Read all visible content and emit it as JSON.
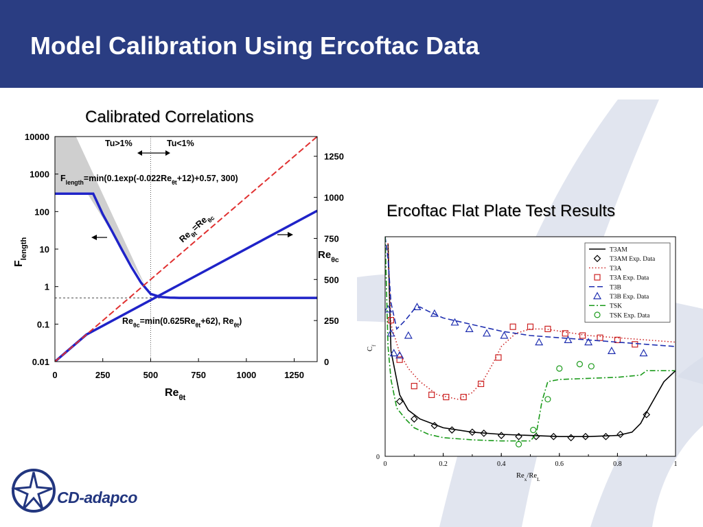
{
  "header": {
    "title": "Model Calibration Using Ercoftac Data"
  },
  "colors": {
    "header_bg": "#2a3d82",
    "brand": "#22367f",
    "swoosh": "#d7dcea"
  },
  "brand": {
    "logo_text": "CD-adapco",
    "logo_icon": "cd-adapco-star-logo"
  },
  "left_section": {
    "title": "Calibrated Correlations"
  },
  "right_section": {
    "title": "Ercoftac Flat Plate Test Results"
  },
  "chart_data": [
    {
      "type": "line",
      "xlabel": "Reθt",
      "ylabel_left": "Flength",
      "ylabel_right": "Reθc",
      "x_ticks": [
        "0",
        "250",
        "500",
        "750",
        "1000",
        "1250"
      ],
      "y_left_ticks": [
        "10000",
        "1000",
        "100",
        "10",
        "1",
        "0.1",
        "0.01"
      ],
      "y_right_ticks": [
        "1250",
        "1000",
        "750",
        "500",
        "250",
        "0"
      ],
      "xlim": [
        0,
        1370
      ],
      "ylim_left": [
        0.01,
        10000
      ],
      "y_left_scale": "log",
      "ylim_right": [
        0,
        1370
      ],
      "annotations": {
        "tu_high": "Tu>1%",
        "tu_low": "Tu<1%",
        "flength_eq": "Flength=min(0.1exp(-0.022Reθt+12)+0.57, 300)",
        "flength_main": "F",
        "flength_sub": "length",
        "flength_rest": "=min(0.1exp(-0.022Re",
        "flength_sub2": "θt",
        "flength_end": "+12)+0.57, 300)",
        "rec_main": "Re",
        "rec_sub": "θc",
        "rec_rest": "=min(0.625Re",
        "rec_sub2": "θt",
        "rec_mid": "+62), Re",
        "rec_sub3": "θt",
        "rec_end": ")",
        "diag_label_main": "Re",
        "diag_label_sub": "θt",
        "diag_label_eq": "=Re",
        "diag_label_sub2": "θc"
      },
      "vertical_marker_x": 500,
      "horizontal_marker_y": 0.5,
      "series": [
        {
          "name": "Flength",
          "axis": "left",
          "color": "#1f23c8",
          "x": [
            0,
            200,
            250,
            300,
            350,
            400,
            450,
            500,
            550,
            600,
            650,
            700,
            1370
          ],
          "y": [
            300,
            300,
            85,
            29,
            9.6,
            3.3,
            1.27,
            0.64,
            0.53,
            0.51,
            0.5,
            0.5,
            0.5
          ]
        },
        {
          "name": "Reθc",
          "axis": "right",
          "color": "#1f23c8",
          "x": [
            0,
            165,
            1370
          ],
          "y": [
            0,
            165,
            918
          ]
        },
        {
          "name": "Reθt=Reθc",
          "axis": "right",
          "color": "#e03030",
          "dashed": true,
          "x": [
            0,
            1370
          ],
          "y": [
            0,
            1370
          ]
        }
      ]
    },
    {
      "type": "line",
      "xlabel": "Rex/ReL",
      "ylabel": "Cf",
      "x_ticks": [
        "0",
        "0.2",
        "0.4",
        "0.6",
        "0.8",
        "1"
      ],
      "y_ticks": [
        "0"
      ],
      "xlim": [
        0,
        1
      ],
      "ylim": [
        0,
        1
      ],
      "legend": [
        "T3AM",
        "T3AM Exp. Data",
        "T3A",
        "T3A Exp. Data",
        "T3B",
        "T3B Exp. Data",
        "TSK",
        "TSK Exp. Data"
      ],
      "legend_position": "top-right",
      "series": [
        {
          "name": "T3AM",
          "kind": "line",
          "color": "#000000",
          "style": "solid",
          "x": [
            0.01,
            0.02,
            0.05,
            0.08,
            0.12,
            0.2,
            0.3,
            0.4,
            0.5,
            0.6,
            0.7,
            0.8,
            0.85,
            0.88,
            0.9,
            0.93,
            0.96,
            1.0
          ],
          "y": [
            0.97,
            0.48,
            0.28,
            0.21,
            0.17,
            0.13,
            0.11,
            0.1,
            0.095,
            0.09,
            0.09,
            0.095,
            0.11,
            0.15,
            0.2,
            0.27,
            0.34,
            0.39
          ]
        },
        {
          "name": "T3AM Exp. Data",
          "kind": "marker",
          "marker": "diamond",
          "color": "#000000",
          "x": [
            0.05,
            0.1,
            0.17,
            0.23,
            0.3,
            0.34,
            0.4,
            0.46,
            0.52,
            0.58,
            0.64,
            0.69,
            0.76,
            0.81,
            0.9
          ],
          "y": [
            0.25,
            0.17,
            0.14,
            0.12,
            0.11,
            0.105,
            0.095,
            0.09,
            0.09,
            0.09,
            0.085,
            0.09,
            0.09,
            0.1,
            0.19
          ]
        },
        {
          "name": "T3A",
          "kind": "line",
          "color": "#cc2222",
          "style": "dotted",
          "x": [
            0.01,
            0.02,
            0.05,
            0.08,
            0.12,
            0.18,
            0.25,
            0.3,
            0.34,
            0.37,
            0.4,
            0.45,
            0.5,
            0.55,
            0.6,
            0.7,
            0.8,
            0.9,
            1.0
          ],
          "y": [
            0.97,
            0.6,
            0.47,
            0.4,
            0.34,
            0.28,
            0.26,
            0.29,
            0.35,
            0.42,
            0.5,
            0.56,
            0.58,
            0.58,
            0.57,
            0.55,
            0.54,
            0.53,
            0.52
          ]
        },
        {
          "name": "T3A Exp. Data",
          "kind": "marker",
          "marker": "square",
          "color": "#cc2222",
          "x": [
            0.02,
            0.05,
            0.1,
            0.16,
            0.21,
            0.27,
            0.33,
            0.39,
            0.44,
            0.5,
            0.56,
            0.62,
            0.68,
            0.74,
            0.8,
            0.86
          ],
          "y": [
            0.62,
            0.44,
            0.32,
            0.28,
            0.27,
            0.27,
            0.33,
            0.45,
            0.59,
            0.59,
            0.58,
            0.56,
            0.55,
            0.54,
            0.53,
            0.51
          ]
        },
        {
          "name": "T3B",
          "kind": "line",
          "color": "#1f2fb0",
          "style": "dashed",
          "x": [
            0.0,
            0.01,
            0.02,
            0.04,
            0.07,
            0.1,
            0.12,
            0.15,
            0.2,
            0.3,
            0.4,
            0.5,
            0.6,
            0.7,
            0.8,
            0.9,
            1.0
          ],
          "y": [
            1.0,
            0.9,
            0.7,
            0.58,
            0.62,
            0.67,
            0.68,
            0.66,
            0.63,
            0.6,
            0.57,
            0.55,
            0.54,
            0.53,
            0.52,
            0.51,
            0.5
          ]
        },
        {
          "name": "T3B Exp. Data",
          "kind": "marker",
          "marker": "triangle",
          "color": "#1f2fb0",
          "x": [
            0.01,
            0.02,
            0.03,
            0.05,
            0.08,
            0.11,
            0.17,
            0.24,
            0.29,
            0.35,
            0.41,
            0.53,
            0.63,
            0.7,
            0.78,
            0.89
          ],
          "y": [
            0.67,
            0.56,
            0.47,
            0.46,
            0.55,
            0.68,
            0.65,
            0.61,
            0.58,
            0.56,
            0.55,
            0.52,
            0.53,
            0.52,
            0.48,
            0.47
          ]
        },
        {
          "name": "TSK",
          "kind": "line",
          "color": "#1a9a1a",
          "style": "dashdot",
          "x": [
            0.0,
            0.01,
            0.02,
            0.04,
            0.07,
            0.1,
            0.15,
            0.2,
            0.3,
            0.4,
            0.5,
            0.52,
            0.54,
            0.56,
            0.6,
            0.7,
            0.8,
            0.88,
            0.9,
            0.93,
            1.0
          ],
          "y": [
            1.0,
            0.5,
            0.35,
            0.22,
            0.17,
            0.13,
            0.1,
            0.085,
            0.075,
            0.07,
            0.07,
            0.1,
            0.25,
            0.34,
            0.35,
            0.355,
            0.36,
            0.37,
            0.39,
            0.39,
            0.39
          ]
        },
        {
          "name": "TSK Exp. Data",
          "kind": "marker",
          "marker": "circle",
          "color": "#1a9a1a",
          "x": [
            0.46,
            0.51,
            0.56,
            0.6,
            0.67,
            0.71
          ],
          "y": [
            0.055,
            0.12,
            0.26,
            0.4,
            0.42,
            0.41
          ]
        }
      ]
    }
  ]
}
